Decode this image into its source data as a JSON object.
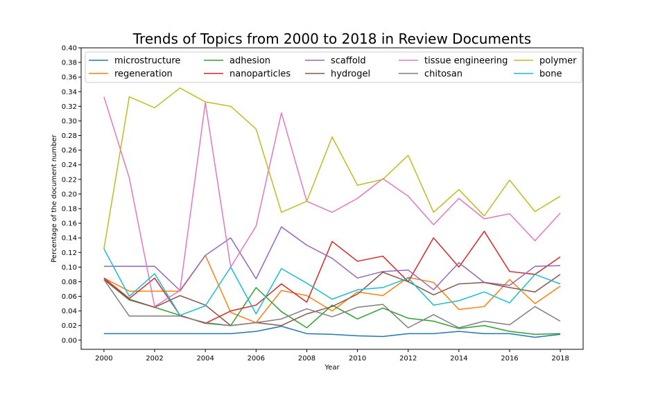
{
  "chart_data": {
    "type": "line",
    "title": "Trends of Topics from 2000 to 2018 in Review Documents",
    "xlabel": "Year",
    "ylabel": "Percentage of the document number",
    "xlim": [
      1999.1,
      2018.9
    ],
    "ylim": [
      -0.0125,
      0.4
    ],
    "x": [
      2000,
      2001,
      2002,
      2003,
      2004,
      2005,
      2006,
      2007,
      2008,
      2009,
      2010,
      2011,
      2012,
      2013,
      2014,
      2015,
      2016,
      2017,
      2018
    ],
    "xticks": [
      "2000",
      "2002",
      "2004",
      "2006",
      "2008",
      "2010",
      "2012",
      "2014",
      "2016",
      "2018"
    ],
    "yticks": [
      "0.00",
      "0.02",
      "0.04",
      "0.06",
      "0.08",
      "0.10",
      "0.12",
      "0.14",
      "0.16",
      "0.18",
      "0.20",
      "0.22",
      "0.24",
      "0.26",
      "0.28",
      "0.30",
      "0.32",
      "0.34",
      "0.36",
      "0.38",
      "0.40"
    ],
    "grid": false,
    "legend_position": "top",
    "series": [
      {
        "name": "microstructure",
        "color": "#1f77b4",
        "values": [
          0.009,
          0.009,
          0.009,
          0.009,
          0.009,
          0.009,
          0.012,
          0.019,
          0.009,
          0.008,
          0.006,
          0.005,
          0.009,
          0.009,
          0.012,
          0.009,
          0.009,
          0.004,
          0.008
        ]
      },
      {
        "name": "regeneration",
        "color": "#ff7f0e",
        "values": [
          0.085,
          0.067,
          0.067,
          0.067,
          0.116,
          0.038,
          0.024,
          0.068,
          0.061,
          0.04,
          0.066,
          0.061,
          0.086,
          0.079,
          0.042,
          0.046,
          0.083,
          0.05,
          0.074
        ]
      },
      {
        "name": "adhesion",
        "color": "#2ca02c",
        "values": [
          0.083,
          0.055,
          0.045,
          0.034,
          0.023,
          0.02,
          0.072,
          0.039,
          0.017,
          0.048,
          0.029,
          0.044,
          0.03,
          0.026,
          0.016,
          0.02,
          0.012,
          0.008,
          0.009
        ]
      },
      {
        "name": "nanoparticles",
        "color": "#d62728",
        "values": [
          0.085,
          0.057,
          0.085,
          0.034,
          0.023,
          0.04,
          0.048,
          0.077,
          0.052,
          0.135,
          0.108,
          0.115,
          0.08,
          0.14,
          0.1,
          0.149,
          0.094,
          0.09,
          0.114
        ]
      },
      {
        "name": "scaffold",
        "color": "#9467bd",
        "values": [
          0.101,
          0.101,
          0.101,
          0.068,
          0.116,
          0.14,
          0.084,
          0.155,
          0.13,
          0.112,
          0.085,
          0.094,
          0.096,
          0.069,
          0.106,
          0.079,
          0.075,
          0.101,
          0.102
        ]
      },
      {
        "name": "hydrogel",
        "color": "#8c564b",
        "values": [
          0.083,
          0.056,
          0.045,
          0.061,
          0.048,
          0.02,
          0.024,
          0.02,
          0.036,
          0.046,
          0.063,
          0.093,
          0.08,
          0.062,
          0.077,
          0.079,
          0.072,
          0.066,
          0.09
        ]
      },
      {
        "name": "tissue engineering",
        "color": "#e377c2",
        "values": [
          0.333,
          0.222,
          0.046,
          0.068,
          0.325,
          0.1,
          0.156,
          0.311,
          0.19,
          0.175,
          0.194,
          0.221,
          0.197,
          0.158,
          0.194,
          0.166,
          0.173,
          0.136,
          0.174
        ]
      },
      {
        "name": "chitosan",
        "color": "#7f7f7f",
        "values": [
          0.083,
          0.033,
          0.033,
          0.033,
          0.024,
          0.02,
          0.024,
          0.029,
          0.043,
          0.032,
          0.045,
          0.049,
          0.017,
          0.035,
          0.017,
          0.026,
          0.021,
          0.046,
          0.026
        ]
      },
      {
        "name": "polymer",
        "color": "#bcbd22",
        "values": [
          0.125,
          0.333,
          0.318,
          0.345,
          0.326,
          0.32,
          0.289,
          0.175,
          0.19,
          0.278,
          0.212,
          0.22,
          0.253,
          0.175,
          0.206,
          0.17,
          0.219,
          0.176,
          0.197
        ]
      },
      {
        "name": "bone",
        "color": "#17becf",
        "values": [
          0.125,
          0.06,
          0.091,
          0.034,
          0.047,
          0.1,
          0.036,
          0.098,
          0.078,
          0.056,
          0.069,
          0.072,
          0.085,
          0.048,
          0.054,
          0.066,
          0.051,
          0.09,
          0.077
        ]
      }
    ]
  }
}
